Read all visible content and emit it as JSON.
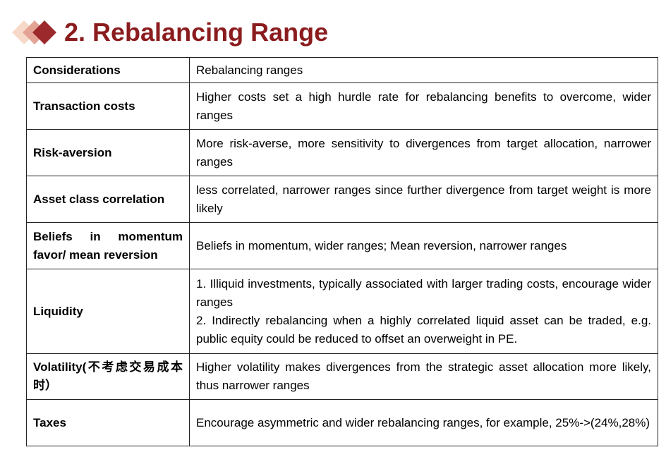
{
  "header": {
    "title": "2. Rebalancing Range"
  },
  "table": {
    "rows": [
      [
        "Considerations",
        "Rebalancing ranges"
      ],
      [
        "Transaction costs",
        "Higher costs set a high hurdle rate for rebalancing benefits to overcome, wider ranges"
      ],
      [
        "Risk-aversion",
        "More risk-averse, more sensitivity to divergences from target allocation, narrower ranges"
      ],
      [
        "Asset class correlation",
        "less correlated, narrower ranges since further divergence from target weight is more likely"
      ],
      [
        "Beliefs in momentum favor/ mean reversion",
        "Beliefs in momentum, wider ranges; Mean reversion, narrower ranges"
      ],
      [
        "Liquidity",
        [
          "1. Illiquid investments, typically associated with larger trading costs, encourage wider ranges",
          "2. Indirectly rebalancing when a highly correlated liquid asset can be traded, e.g. public equity could be reduced to offset an overweight in PE."
        ]
      ],
      [
        "Volatility(不考虑交易成本时）",
        "Higher volatility makes divergences from the strategic asset allocation more likely, thus narrower ranges"
      ],
      [
        "Taxes",
        "Encourage asymmetric and wider rebalancing ranges, for example, 25%->(24%,28%)"
      ]
    ]
  }
}
